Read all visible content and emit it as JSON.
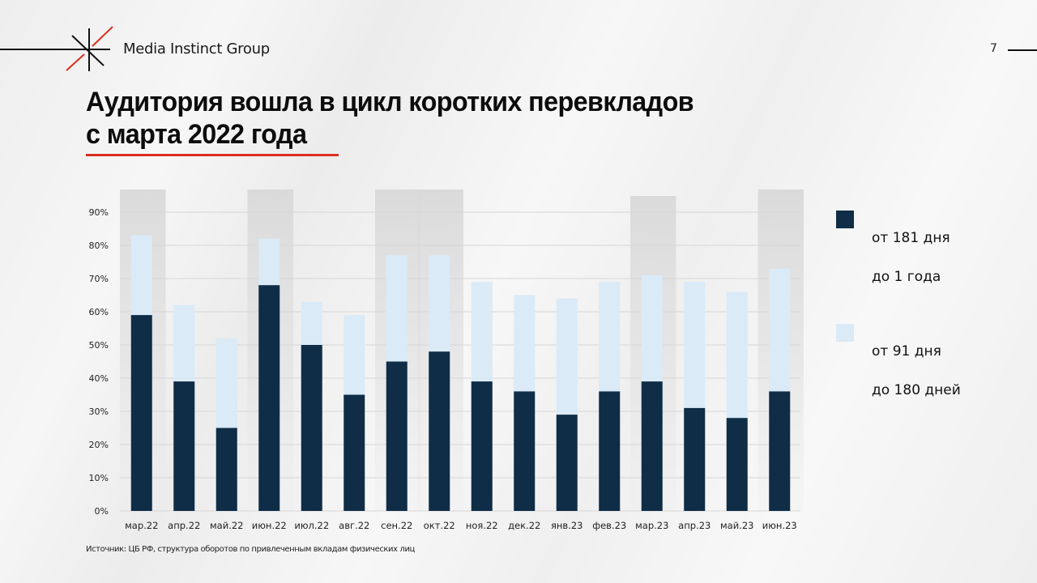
{
  "header": {
    "brand": "Media Instinct Group",
    "page_number": "7",
    "logo_icon": "starburst-logo-icon"
  },
  "slide": {
    "title_line1": "Аудитория вошла в цикл коротких перевкладов",
    "title_line2": "с марта 2022 года",
    "source": "Источник: ЦБ РФ, структура оборотов по привлеченным вкладам физических лиц"
  },
  "colors": {
    "accent_red": "#d9301f",
    "series_dark": "#0f2d47",
    "series_light": "#daeaf7",
    "highlight": "#dcdcdc",
    "grid": "#d6d6d6"
  },
  "chart_data": {
    "type": "bar",
    "stacked": false,
    "overlapped": true,
    "title": "",
    "xlabel": "",
    "ylabel": "",
    "ylim": [
      0,
      90
    ],
    "yticks": [
      "0%",
      "10%",
      "20%",
      "30%",
      "40%",
      "50%",
      "60%",
      "70%",
      "80%",
      "90%"
    ],
    "grid": true,
    "legend_position": "right",
    "categories": [
      "мар.22",
      "апр.22",
      "май.22",
      "июн.22",
      "июл.22",
      "авг.22",
      "сен.22",
      "окт.22",
      "ноя.22",
      "дек.22",
      "янв.23",
      "фев.23",
      "мар.23",
      "апр.23",
      "май.23",
      "июн.23"
    ],
    "series": [
      {
        "name": "от 91 дня\nдо 180 дней",
        "legend_line1": "от 91 дня",
        "legend_line2": "до 180 дней",
        "color": "#daeaf7",
        "values": [
          83,
          62,
          52,
          82,
          63,
          59,
          77,
          77,
          69,
          65,
          64,
          69,
          71,
          69,
          66,
          73
        ]
      },
      {
        "name": "от 181 дня\nдо 1 года",
        "legend_line1": "от 181 дня",
        "legend_line2": "до 1 года",
        "color": "#0f2d47",
        "values": [
          59,
          39,
          25,
          68,
          50,
          35,
          45,
          48,
          39,
          36,
          29,
          36,
          39,
          31,
          28,
          36
        ]
      }
    ],
    "highlighted_categories": [
      "мар.22",
      "июн.22",
      "сен.22",
      "окт.22",
      "мар.23",
      "июн.23"
    ],
    "unit": "%"
  }
}
